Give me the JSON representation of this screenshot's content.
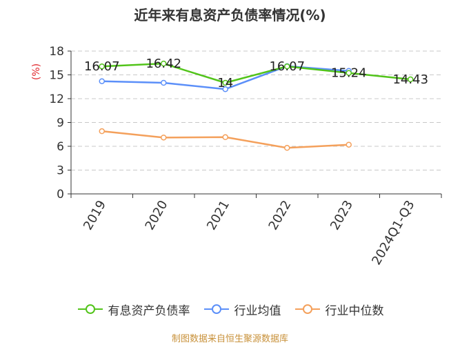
{
  "chart_data": {
    "type": "line",
    "title": "近年来有息资产负债率情况(%)",
    "ylabel": "(%)",
    "categories": [
      "2019",
      "2020",
      "2021",
      "2022",
      "2023",
      "2024Q1-Q3"
    ],
    "ylim": [
      0,
      18
    ],
    "yticks": [
      0,
      3,
      6,
      9,
      12,
      15,
      18
    ],
    "grid": true,
    "legend_position": "bottom",
    "series": [
      {
        "name": "有息资产负债率",
        "color": "#52c41a",
        "values": [
          16.07,
          16.42,
          14,
          16.07,
          15.24,
          14.43
        ],
        "labels": [
          "16.07",
          "16.42",
          "14",
          "16.07",
          "15.24",
          "14.43"
        ]
      },
      {
        "name": "行业均值",
        "color": "#5b8ff9",
        "values": [
          14.2,
          14.0,
          13.2,
          16.1,
          15.5,
          null
        ]
      },
      {
        "name": "行业中位数",
        "color": "#f4a05b",
        "values": [
          7.9,
          7.1,
          7.15,
          5.8,
          6.2,
          null
        ]
      }
    ]
  },
  "source": "制图数据来自恒生聚源数据库"
}
